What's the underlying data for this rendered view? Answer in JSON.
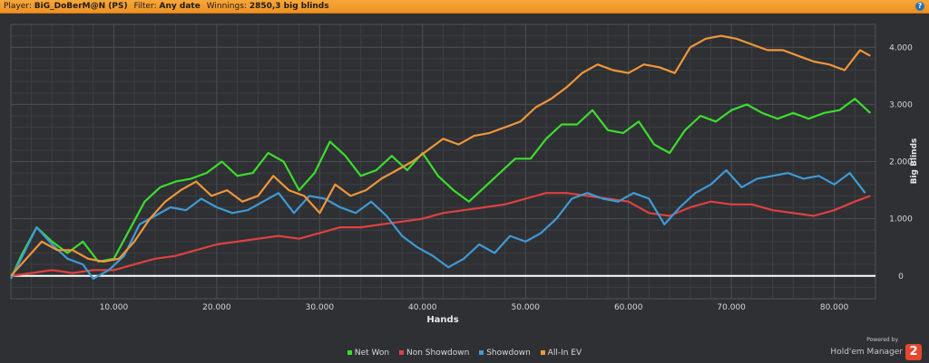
{
  "header": {
    "player_label": "Player:",
    "player_value": "BiG_DoBerM@N (PS)",
    "filter_label": "Filter:",
    "filter_value": "Any date",
    "winnings_label": "Winnings:",
    "winnings_value": "2850,3 big blinds",
    "help_icon": "question-icon"
  },
  "brand": {
    "powered_by": "Powered by",
    "name": "Hold'em Manager",
    "badge": "2"
  },
  "legend": [
    "Net Won",
    "Non Showdown",
    "Showdown",
    "All-In EV"
  ],
  "chart_data": {
    "type": "line",
    "xlabel": "Hands",
    "ylabel": "Big Blinds",
    "xlim": [
      0,
      84000
    ],
    "ylim": [
      -400,
      4400
    ],
    "xticks": [
      10000,
      20000,
      30000,
      40000,
      50000,
      60000,
      70000,
      80000
    ],
    "xtick_labels": [
      "10.000",
      "20.000",
      "30.000",
      "40.000",
      "50.000",
      "60.000",
      "70.000",
      "80.000"
    ],
    "yticks": [
      0,
      1000,
      2000,
      3000,
      4000
    ],
    "ytick_labels": [
      "0",
      "1.000",
      "2.000",
      "3.000",
      "4.000"
    ],
    "grid": true,
    "zero_line": true,
    "legend_position": "bottom",
    "series": [
      {
        "name": "Net Won",
        "color": "#3ddc2f",
        "x": [
          0,
          1000,
          2500,
          4000,
          5500,
          7000,
          8500,
          10000,
          11500,
          13000,
          14500,
          16000,
          17500,
          19000,
          20500,
          22000,
          23500,
          25000,
          26500,
          28000,
          29500,
          31000,
          32500,
          34000,
          35500,
          37000,
          38500,
          40000,
          41500,
          43000,
          44500,
          46000,
          47500,
          49000,
          50500,
          52000,
          53500,
          55000,
          56500,
          58000,
          59500,
          61000,
          62500,
          64000,
          65500,
          67000,
          68500,
          70000,
          71500,
          73000,
          74500,
          76000,
          77500,
          79000,
          80500,
          82000,
          83500
        ],
        "y": [
          -50,
          350,
          850,
          600,
          400,
          600,
          250,
          300,
          800,
          1300,
          1550,
          1650,
          1700,
          1800,
          2000,
          1750,
          1800,
          2150,
          2000,
          1500,
          1800,
          2350,
          2100,
          1750,
          1850,
          2100,
          1850,
          2150,
          1750,
          1500,
          1300,
          1550,
          1800,
          2050,
          2050,
          2400,
          2650,
          2650,
          2900,
          2550,
          2500,
          2700,
          2300,
          2150,
          2550,
          2800,
          2700,
          2900,
          3000,
          2850,
          2750,
          2850,
          2750,
          2850,
          2900,
          3100,
          2850
        ]
      },
      {
        "name": "Non Showdown",
        "color": "#e04040",
        "x": [
          0,
          2000,
          4000,
          6000,
          8000,
          10000,
          12000,
          14000,
          16000,
          18000,
          20000,
          22000,
          24000,
          26000,
          28000,
          30000,
          32000,
          34000,
          36000,
          38000,
          40000,
          42000,
          44000,
          46000,
          48000,
          50000,
          52000,
          54000,
          56000,
          58000,
          60000,
          62000,
          64000,
          66000,
          68000,
          70000,
          72000,
          74000,
          76000,
          78000,
          80000,
          82000,
          83500
        ],
        "y": [
          0,
          50,
          100,
          50,
          100,
          100,
          200,
          300,
          350,
          450,
          550,
          600,
          650,
          700,
          650,
          750,
          850,
          850,
          900,
          950,
          1000,
          1100,
          1150,
          1200,
          1250,
          1350,
          1450,
          1450,
          1400,
          1350,
          1300,
          1100,
          1050,
          1200,
          1300,
          1250,
          1250,
          1150,
          1100,
          1050,
          1150,
          1300,
          1400
        ]
      },
      {
        "name": "Showdown",
        "color": "#3f9ad6",
        "x": [
          0,
          1000,
          2500,
          4000,
          5500,
          7000,
          8000,
          9500,
          11000,
          12500,
          14000,
          15500,
          17000,
          18500,
          20000,
          21500,
          23000,
          24500,
          26000,
          27500,
          29000,
          30500,
          32000,
          33500,
          35000,
          36500,
          38000,
          39500,
          41000,
          42500,
          44000,
          45500,
          47000,
          48500,
          50000,
          51500,
          53000,
          54500,
          56000,
          57500,
          59000,
          60500,
          62000,
          63500,
          65000,
          66500,
          68000,
          69500,
          71000,
          72500,
          74000,
          75500,
          77000,
          78500,
          80000,
          81500,
          83000
        ],
        "y": [
          -50,
          300,
          850,
          550,
          300,
          200,
          -50,
          100,
          350,
          900,
          1050,
          1200,
          1150,
          1350,
          1200,
          1100,
          1150,
          1300,
          1450,
          1100,
          1400,
          1350,
          1200,
          1100,
          1300,
          1050,
          700,
          500,
          350,
          150,
          300,
          550,
          400,
          700,
          600,
          750,
          1000,
          1350,
          1450,
          1350,
          1300,
          1450,
          1350,
          900,
          1200,
          1450,
          1600,
          1850,
          1550,
          1700,
          1750,
          1800,
          1700,
          1750,
          1600,
          1800,
          1450
        ]
      },
      {
        "name": "All-In EV",
        "color": "#f0963a",
        "x": [
          0,
          1500,
          3000,
          4500,
          6000,
          7500,
          9000,
          10500,
          12000,
          13500,
          15000,
          16500,
          18000,
          19500,
          21000,
          22500,
          24000,
          25500,
          27000,
          28500,
          30000,
          31500,
          33000,
          34500,
          36000,
          37500,
          39000,
          40500,
          42000,
          43500,
          45000,
          46500,
          48000,
          49500,
          51000,
          52500,
          54000,
          55500,
          57000,
          58500,
          60000,
          61500,
          63000,
          64500,
          66000,
          67500,
          69000,
          70500,
          72000,
          73500,
          75000,
          76500,
          78000,
          79500,
          81000,
          82500,
          83500
        ],
        "y": [
          0,
          300,
          600,
          450,
          450,
          300,
          250,
          300,
          600,
          1000,
          1300,
          1500,
          1650,
          1400,
          1500,
          1300,
          1400,
          1750,
          1500,
          1400,
          1100,
          1600,
          1400,
          1500,
          1700,
          1850,
          2000,
          2200,
          2400,
          2300,
          2450,
          2500,
          2600,
          2700,
          2950,
          3100,
          3300,
          3550,
          3700,
          3600,
          3550,
          3700,
          3650,
          3550,
          4000,
          4150,
          4200,
          4150,
          4050,
          3950,
          3950,
          3850,
          3750,
          3700,
          3600,
          3950,
          3850
        ]
      }
    ]
  }
}
